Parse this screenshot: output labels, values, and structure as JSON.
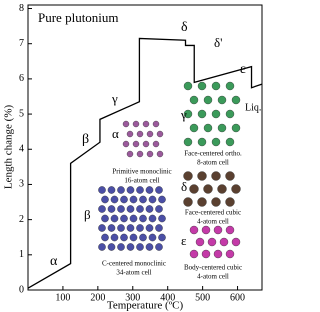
{
  "chart_data": {
    "type": "line",
    "title": "Pure plutonium",
    "x_label": "Temperature (ºC)",
    "y_label": "Length change (%)",
    "x": [
      0,
      122,
      122,
      206,
      206,
      319,
      319,
      451,
      451,
      476,
      476,
      640,
      640,
      670
    ],
    "series": [
      {
        "color": "#000000",
        "values": [
          0.05,
          0.75,
          3.6,
          4.2,
          4.85,
          5.35,
          7.15,
          7.1,
          6.95,
          6.95,
          5.9,
          6.35,
          5.75,
          5.85
        ]
      }
    ],
    "xlim": [
      0,
      670
    ],
    "ylim": [
      0,
      8.1
    ],
    "xticks": [
      100,
      200,
      300,
      400,
      500,
      600
    ],
    "yticks": [
      0,
      1,
      2,
      3,
      4,
      5,
      6,
      7,
      8
    ],
    "phase_labels": [
      "α",
      "β",
      "γ",
      "δ",
      "δ'",
      "ε",
      "Liq."
    ],
    "structures": [
      {
        "symbol": "α",
        "lines": [
          "Primitive monoclinic",
          "16-atom cell"
        ]
      },
      {
        "symbol": "β",
        "lines": [
          "C-centered monoclinic",
          "34-atom cell"
        ]
      },
      {
        "symbol": "γ",
        "lines": [
          "Face-centered ortho.",
          "8-atom cell"
        ]
      },
      {
        "symbol": "δ",
        "lines": [
          "Face-centered cubic",
          "4-atom cell"
        ]
      },
      {
        "symbol": "ε",
        "lines": [
          "Body-centered cubic",
          "4-atom cell"
        ]
      }
    ]
  }
}
